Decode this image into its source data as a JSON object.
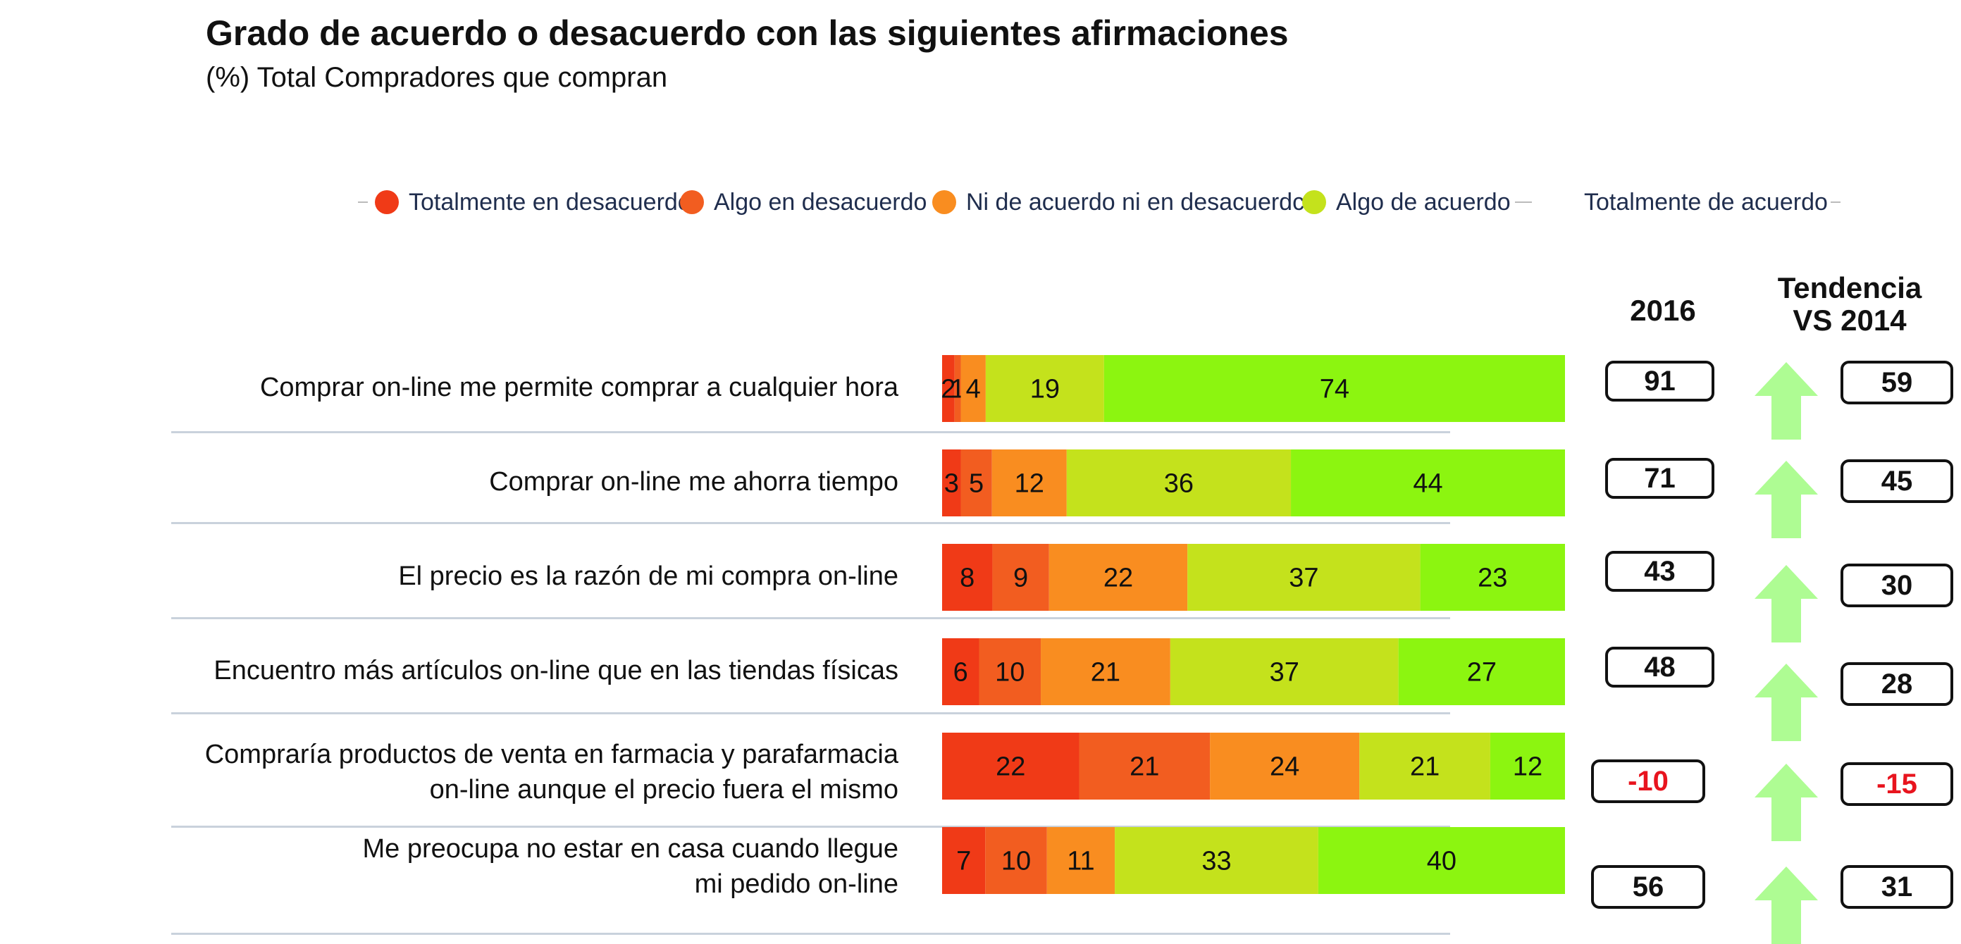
{
  "title": "Grado de acuerdo o desacuerdo con las siguientes  afirmaciones",
  "subtitle": "(%) Total Compradores que compran",
  "columns": {
    "year": "2016",
    "trend_line1": "Tendencia",
    "trend_line2": "VS 2014"
  },
  "colors": {
    "totally_disagree": "#f03a17",
    "somewhat_disagree": "#f25d20",
    "neutral": "#f98d20",
    "somewhat_agree": "#c4e21c",
    "totally_agree": "#8cf510",
    "arrow": "#aefc93",
    "negative_text": "#e8141e"
  },
  "chart_data": {
    "type": "bar",
    "orientation": "horizontal-stacked-100",
    "legend_position": "top",
    "series": [
      {
        "name": "Totalmente en desacuerdo",
        "values": [
          2,
          3,
          8,
          6,
          22,
          7
        ]
      },
      {
        "name": "Algo en desacuerdo",
        "values": [
          1,
          5,
          9,
          10,
          21,
          10
        ]
      },
      {
        "name": "Ni de acuerdo ni en desacuerdc",
        "values": [
          4,
          12,
          22,
          21,
          24,
          11
        ]
      },
      {
        "name": "Algo de acuerdo",
        "values": [
          19,
          36,
          37,
          37,
          21,
          33
        ]
      },
      {
        "name": "Totalmente de acuerdo",
        "values": [
          74,
          44,
          23,
          27,
          12,
          40
        ]
      }
    ],
    "categories": [
      [
        "Comprar on-line me permite comprar a cualquier hora"
      ],
      [
        "Comprar on-line me ahorra tiempo"
      ],
      [
        "El precio es la razón de mi compra on-line"
      ],
      [
        "Encuentro más artículos on-line que en las tiendas físicas"
      ],
      [
        "Compraría productos de venta en farmacia y parafarmacia",
        "on-line aunque el precio fuera el mismo"
      ],
      [
        "Me  preocupa no estar en casa cuando llegue",
        "mi pedido on-line"
      ]
    ],
    "value_2016": [
      "91",
      "71",
      "43",
      "48",
      "-10",
      "56"
    ],
    "trend_vs_2014": [
      "59",
      "45",
      "30",
      "28",
      "-15",
      "31"
    ],
    "trend_direction": [
      "up",
      "up",
      "up",
      "up",
      "up",
      "up"
    ]
  }
}
